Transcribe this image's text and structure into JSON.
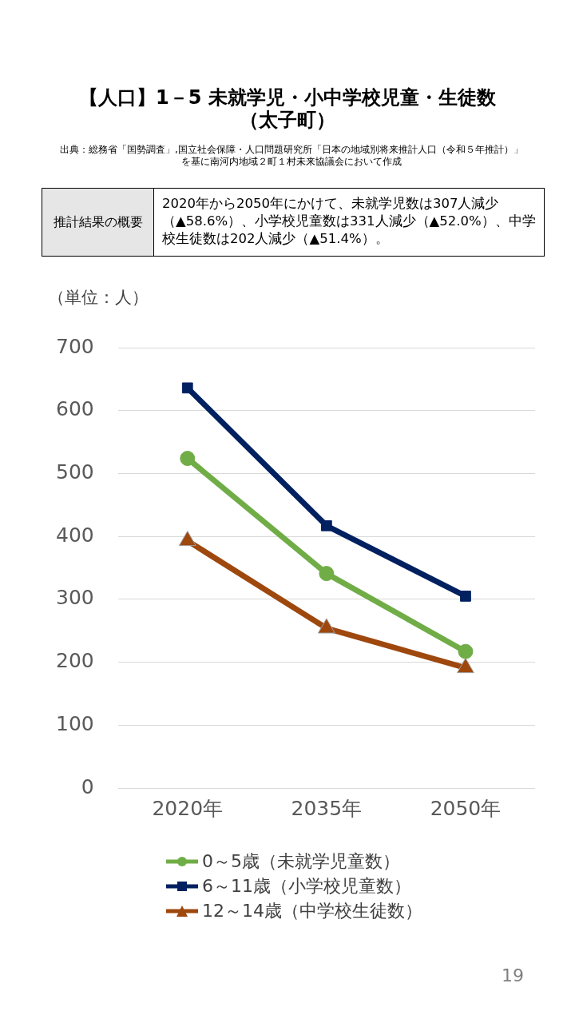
{
  "chart_data": {
    "type": "line",
    "title": "【人口】1－5 未就学児・小中学校児童・生徒数（太子町）",
    "subtitle": "出典：総務省「国勢調査」,国立社会保障・人口問題研究所「日本の地域別将来推計人口（令和５年推計）」を基に南河内地域２町１村未来協議会において作成",
    "ylabel": "（単位：人）",
    "categories": [
      "2020年",
      "2035年",
      "2050年"
    ],
    "series": [
      {
        "name": "0～5歳（未就学児童数）",
        "color": "#70ad47",
        "marker": "circle",
        "values": [
          524,
          341,
          217
        ]
      },
      {
        "name": "6～11歳（小学校児童数）",
        "color": "#002060",
        "marker": "square",
        "values": [
          636,
          417,
          305
        ]
      },
      {
        "name": "12～14歳（中学校生徒数）",
        "color": "#9e480e",
        "marker": "triangle",
        "values": [
          393,
          254,
          191
        ]
      }
    ],
    "ylim": [
      0,
      700
    ],
    "yticks": [
      0,
      100,
      200,
      300,
      400,
      500,
      600,
      700
    ],
    "grid": "y",
    "legend": "bottom",
    "line_style": "solid",
    "annotations": [
      "推計結果の概要",
      "2020年から2050年にかけて、未就学児数は307人減少（▲58.6%）、小学校児童数は331人減少（▲52.0%）、中学校生徒数は202人減少（▲51.4%）。",
      "19"
    ]
  }
}
